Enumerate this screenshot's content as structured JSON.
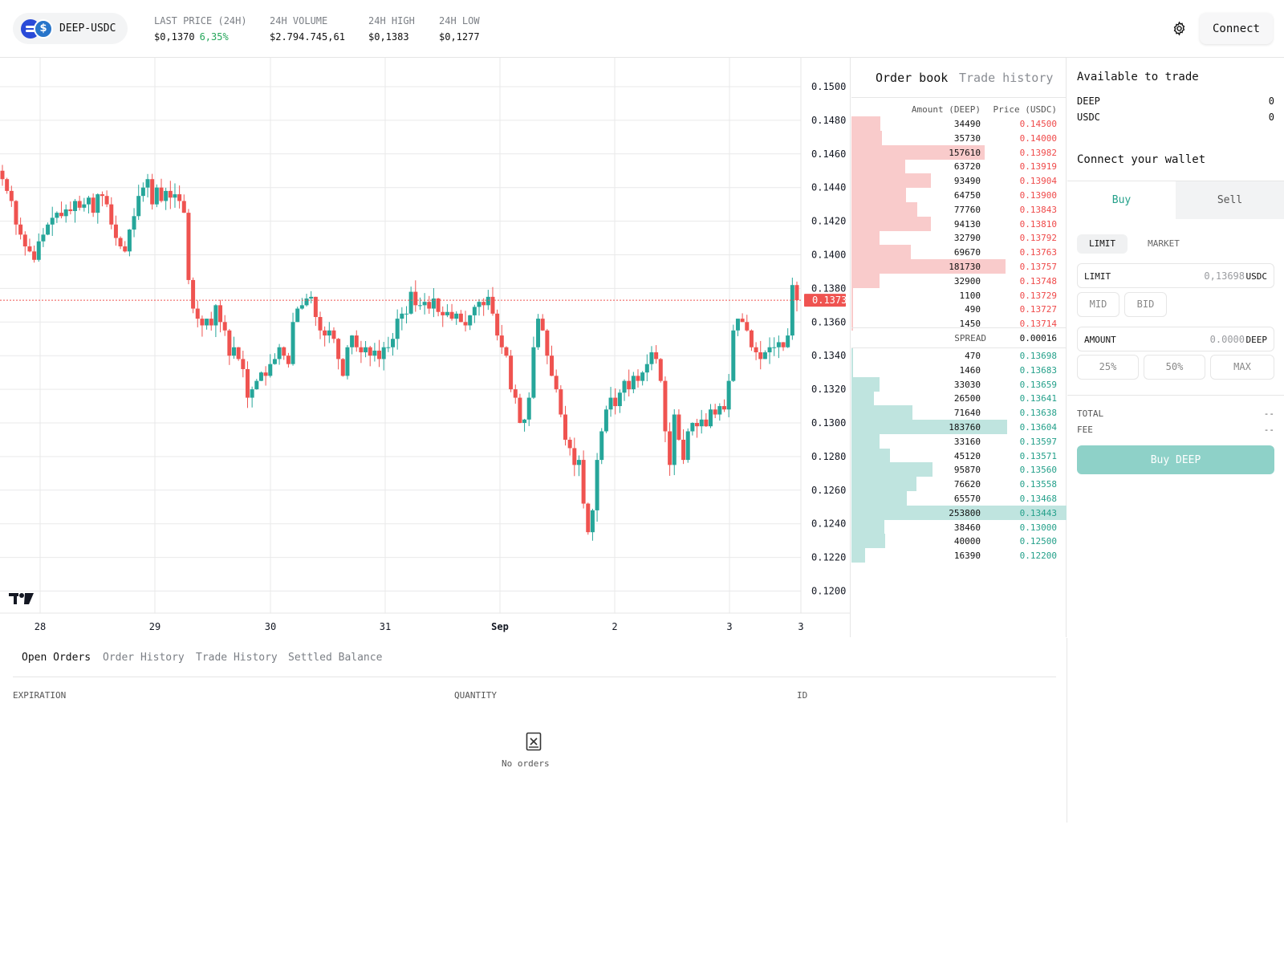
{
  "header": {
    "pair": "DEEP-USDC",
    "base_icon": "deep-token-icon",
    "quote_icon": "usdc-token-icon",
    "stats": [
      {
        "label": "LAST PRICE (24H)",
        "value": "$0,1370",
        "change": "6,35%"
      },
      {
        "label": "24H VOLUME",
        "value": "$2.794.745,61"
      },
      {
        "label": "24H HIGH",
        "value": "$0,1383"
      },
      {
        "label": "24H LOW",
        "value": "$0,1277"
      }
    ],
    "settings_icon": "gear-icon",
    "connect_label": "Connect"
  },
  "chart": {
    "price_ticks": [
      "0.1500",
      "0.1480",
      "0.1460",
      "0.1440",
      "0.1420",
      "0.1400",
      "0.1380",
      "0.1360",
      "0.1340",
      "0.1320",
      "0.1300",
      "0.1280",
      "0.1260",
      "0.1240",
      "0.1220",
      "0.1200"
    ],
    "date_ticks": [
      "28",
      "29",
      "30",
      "31",
      "Sep",
      "2",
      "3",
      "3"
    ],
    "current_price": "0.1373",
    "up_color": "#26a69a",
    "down_color": "#ef5350",
    "logo_icon": "tradingview-logo-icon"
  },
  "chart_data": {
    "type": "candlestick",
    "x": [
      "28",
      "29",
      "30",
      "31",
      "Sep",
      "2",
      "3"
    ],
    "ylim": [
      0.1195,
      0.1505
    ],
    "closes": [
      0.1445,
      0.1438,
      0.1432,
      0.1418,
      0.1412,
      0.1405,
      0.1402,
      0.1397,
      0.1408,
      0.1412,
      0.1418,
      0.1422,
      0.1425,
      0.1423,
      0.1427,
      0.1426,
      0.1432,
      0.1428,
      0.143,
      0.1434,
      0.1425,
      0.1436,
      0.1435,
      0.143,
      0.1418,
      0.141,
      0.1405,
      0.1402,
      0.1415,
      0.1423,
      0.1435,
      0.144,
      0.1445,
      0.143,
      0.144,
      0.1432,
      0.1438,
      0.1434,
      0.1436,
      0.1432,
      0.1425,
      0.1385,
      0.1368,
      0.1362,
      0.1358,
      0.1362,
      0.1358,
      0.137,
      0.136,
      0.1355,
      0.134,
      0.1345,
      0.1338,
      0.1332,
      0.1315,
      0.132,
      0.1325,
      0.133,
      0.1328,
      0.1335,
      0.1338,
      0.1345,
      0.134,
      0.1335,
      0.136,
      0.1368,
      0.137,
      0.1374,
      0.1375,
      0.1363,
      0.1355,
      0.1352,
      0.1355,
      0.135,
      0.1338,
      0.1328,
      0.1345,
      0.1352,
      0.1345,
      0.1342,
      0.1345,
      0.134,
      0.1343,
      0.1338,
      0.1345,
      0.1345,
      0.135,
      0.1362,
      0.1365,
      0.1365,
      0.1378,
      0.137,
      0.137,
      0.1372,
      0.1368,
      0.1374,
      0.1366,
      0.1364,
      0.1366,
      0.1362,
      0.1365,
      0.136,
      0.1358,
      0.1364,
      0.1369,
      0.1372,
      0.137,
      0.1375,
      0.1365,
      0.1352,
      0.1345,
      0.134,
      0.132,
      0.1315,
      0.13,
      0.1302,
      0.1315,
      0.1345,
      0.1362,
      0.1355,
      0.134,
      0.1328,
      0.132,
      0.1305,
      0.129,
      0.1285,
      0.1275,
      0.1278,
      0.1252,
      0.1235,
      0.1248,
      0.1278,
      0.1295,
      0.1308,
      0.1315,
      0.131,
      0.1318,
      0.1325,
      0.132,
      0.1328,
      0.1325,
      0.133,
      0.1335,
      0.1342,
      0.1338,
      0.1325,
      0.1295,
      0.1275,
      0.1305,
      0.129,
      0.1278,
      0.1295,
      0.13,
      0.1298,
      0.1302,
      0.1298,
      0.1308,
      0.1305,
      0.131,
      0.1308,
      0.1325,
      0.1355,
      0.1362,
      0.136,
      0.1355,
      0.1345,
      0.1342,
      0.1338,
      0.1342,
      0.1345,
      0.1345,
      0.1348,
      0.1345,
      0.1352,
      0.1382,
      0.1373
    ]
  },
  "orderbook": {
    "tabs": [
      "Order book",
      "Trade history"
    ],
    "amount_header": "Amount (DEEP)",
    "price_header": "Price (USDC)",
    "asks": [
      {
        "amount": "34490",
        "price": "0.14500"
      },
      {
        "amount": "35730",
        "price": "0.14000"
      },
      {
        "amount": "157610",
        "price": "0.13982"
      },
      {
        "amount": "63720",
        "price": "0.13919"
      },
      {
        "amount": "93490",
        "price": "0.13904"
      },
      {
        "amount": "64750",
        "price": "0.13900"
      },
      {
        "amount": "77760",
        "price": "0.13843"
      },
      {
        "amount": "94130",
        "price": "0.13810"
      },
      {
        "amount": "32790",
        "price": "0.13792"
      },
      {
        "amount": "69670",
        "price": "0.13763"
      },
      {
        "amount": "181730",
        "price": "0.13757"
      },
      {
        "amount": "32900",
        "price": "0.13748"
      },
      {
        "amount": "1100",
        "price": "0.13729"
      },
      {
        "amount": "490",
        "price": "0.13727"
      },
      {
        "amount": "1450",
        "price": "0.13714"
      }
    ],
    "spread_label": "SPREAD",
    "spread_value": "0.00016",
    "bids": [
      {
        "amount": "470",
        "price": "0.13698"
      },
      {
        "amount": "1460",
        "price": "0.13683"
      },
      {
        "amount": "33030",
        "price": "0.13659"
      },
      {
        "amount": "26500",
        "price": "0.13641"
      },
      {
        "amount": "71640",
        "price": "0.13638"
      },
      {
        "amount": "183760",
        "price": "0.13604"
      },
      {
        "amount": "33160",
        "price": "0.13597"
      },
      {
        "amount": "45120",
        "price": "0.13571"
      },
      {
        "amount": "95870",
        "price": "0.13560"
      },
      {
        "amount": "76620",
        "price": "0.13558"
      },
      {
        "amount": "65570",
        "price": "0.13468"
      },
      {
        "amount": "253800",
        "price": "0.13443"
      },
      {
        "amount": "38460",
        "price": "0.13000"
      },
      {
        "amount": "40000",
        "price": "0.12500"
      },
      {
        "amount": "16390",
        "price": "0.12200"
      }
    ]
  },
  "trade": {
    "available_title": "Available to trade",
    "balances": [
      {
        "asset": "DEEP",
        "value": "0"
      },
      {
        "asset": "USDC",
        "value": "0"
      }
    ],
    "connect_wallet": "Connect your wallet",
    "buy_tab": "Buy",
    "sell_tab": "Sell",
    "order_types": [
      "LIMIT",
      "MARKET"
    ],
    "limit_label": "LIMIT",
    "limit_value": "0,13698",
    "limit_unit": "USDC",
    "mid_label": "MID",
    "bid_label": "BID",
    "amount_label": "AMOUNT",
    "amount_placeholder": "0.0000",
    "amount_unit": "DEEP",
    "pct_buttons": [
      "25%",
      "50%",
      "MAX"
    ],
    "total_label": "TOTAL",
    "total_value": "--",
    "fee_label": "FEE",
    "fee_value": "--",
    "submit_label": "Buy DEEP",
    "accent": "#24a08a"
  },
  "bottom": {
    "tabs": [
      "Open Orders",
      "Order History",
      "Trade History",
      "Settled Balance"
    ],
    "columns": [
      "EXPIRATION",
      "QUANTITY",
      "ID"
    ],
    "empty_icon": "empty-box-icon",
    "empty_text": "No orders"
  }
}
